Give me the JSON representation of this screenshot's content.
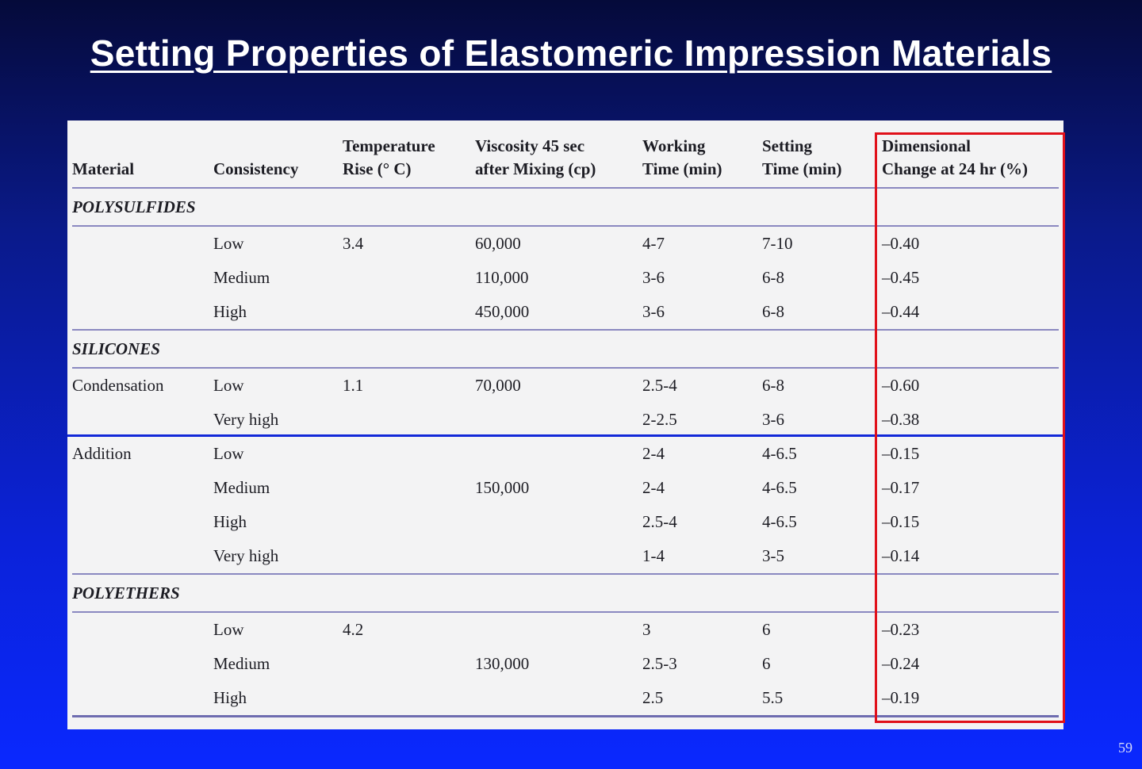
{
  "slide": {
    "title": "Setting Properties of Elastomeric Impression Materials",
    "page_number": "59"
  },
  "table": {
    "headers": {
      "material": "Material",
      "consistency": "Consistency",
      "temperature_line1": "Temperature",
      "temperature_line2": "Rise (° C)",
      "viscosity_line1": "Viscosity 45 sec",
      "viscosity_line2": "after Mixing (cp)",
      "working_line1": "Working",
      "working_line2": "Time (min)",
      "setting_line1": "Setting",
      "setting_line2": "Time (min)",
      "dimensional_line1": "Dimensional",
      "dimensional_line2": "Change at 24 hr (%)"
    },
    "sections": {
      "polysulfides": "POLYSULFIDES",
      "silicones": "SILICONES",
      "polyethers": "POLYETHERS"
    },
    "rows": [
      {
        "material": "",
        "consistency": "Low",
        "temp": "3.4",
        "viscosity": "60,000",
        "working": "4-7",
        "setting": "7-10",
        "dim": "–0.40"
      },
      {
        "material": "",
        "consistency": "Medium",
        "temp": "",
        "viscosity": "110,000",
        "working": "3-6",
        "setting": "6-8",
        "dim": "–0.45"
      },
      {
        "material": "",
        "consistency": "High",
        "temp": "",
        "viscosity": "450,000",
        "working": "3-6",
        "setting": "6-8",
        "dim": "–0.44"
      },
      {
        "material": "Condensation",
        "consistency": "Low",
        "temp": "1.1",
        "viscosity": "70,000",
        "working": "2.5-4",
        "setting": "6-8",
        "dim": "–0.60"
      },
      {
        "material": "",
        "consistency": "Very high",
        "temp": "",
        "viscosity": "",
        "working": "2-2.5",
        "setting": "3-6",
        "dim": "–0.38"
      },
      {
        "material": "Addition",
        "consistency": "Low",
        "temp": "",
        "viscosity": "",
        "working": "2-4",
        "setting": "4-6.5",
        "dim": "–0.15"
      },
      {
        "material": "",
        "consistency": "Medium",
        "temp": "",
        "viscosity": "150,000",
        "working": "2-4",
        "setting": "4-6.5",
        "dim": "–0.17"
      },
      {
        "material": "",
        "consistency": "High",
        "temp": "",
        "viscosity": "",
        "working": "2.5-4",
        "setting": "4-6.5",
        "dim": "–0.15"
      },
      {
        "material": "",
        "consistency": "Very high",
        "temp": "",
        "viscosity": "",
        "working": "1-4",
        "setting": "3-5",
        "dim": "–0.14"
      },
      {
        "material": "",
        "consistency": "Low",
        "temp": "4.2",
        "viscosity": "",
        "working": "3",
        "setting": "6",
        "dim": "–0.23"
      },
      {
        "material": "",
        "consistency": "Medium",
        "temp": "",
        "viscosity": "130,000",
        "working": "2.5-3",
        "setting": "6",
        "dim": "–0.24"
      },
      {
        "material": "",
        "consistency": "High",
        "temp": "",
        "viscosity": "",
        "working": "2.5",
        "setting": "5.5",
        "dim": "–0.19"
      }
    ]
  },
  "colors": {
    "highlight_box": "#e0101a",
    "divider": "#1228d8",
    "rule": "#8a88c0"
  }
}
